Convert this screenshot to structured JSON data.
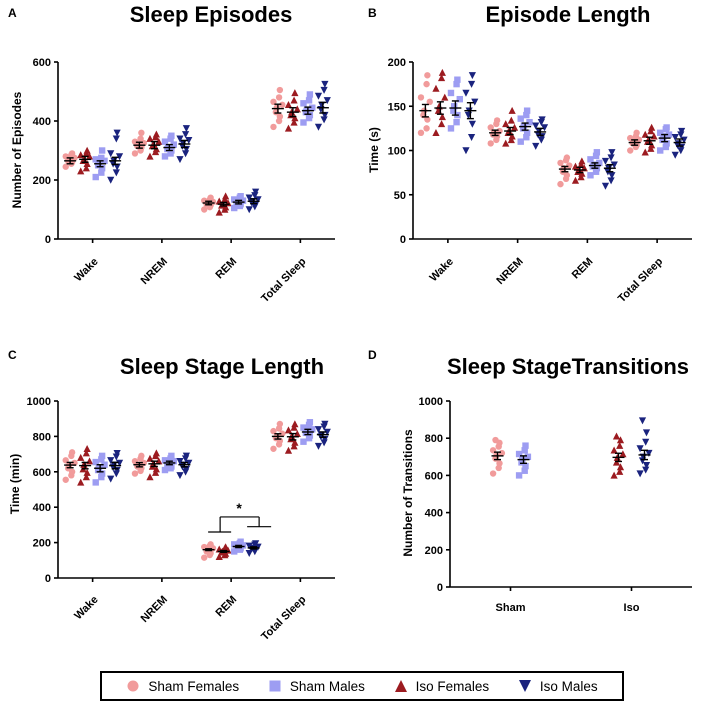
{
  "series": [
    {
      "name": "Sham Females",
      "color": "#f19b9b",
      "marker": "circle"
    },
    {
      "name": "Sham Males",
      "color": "#9d9df2",
      "marker": "square"
    },
    {
      "name": "Iso Females",
      "color": "#9c1b20",
      "marker": "triangle-up"
    },
    {
      "name": "Iso Males",
      "color": "#1a237e",
      "marker": "triangle-down"
    }
  ],
  "chart_data": [
    {
      "panel": "A",
      "title": "Sleep Episodes",
      "type": "scatter",
      "ylabel": "Number of Episodes",
      "ylim": [
        0,
        600
      ],
      "yticks": [
        0,
        200,
        400,
        600
      ],
      "categories": [
        "Wake",
        "NREM",
        "REM",
        "Total Sleep"
      ],
      "series_order": [
        "Sham Females",
        "Iso Females",
        "Sham Males",
        "Iso Males"
      ],
      "means": [
        [
          265,
          270,
          255,
          265
        ],
        [
          318,
          318,
          310,
          322
        ],
        [
          122,
          118,
          125,
          128
        ],
        [
          442,
          430,
          435,
          445
        ]
      ],
      "sem": [
        [
          10,
          10,
          10,
          12
        ],
        [
          10,
          12,
          10,
          12
        ],
        [
          6,
          6,
          6,
          8
        ],
        [
          15,
          15,
          12,
          18
        ]
      ],
      "points": [
        [
          [
            245,
            255,
            260,
            265,
            270,
            275,
            280,
            285,
            290
          ],
          [
            230,
            240,
            255,
            265,
            270,
            280,
            285,
            290,
            300
          ],
          [
            210,
            225,
            240,
            250,
            255,
            265,
            270,
            275,
            300
          ],
          [
            200,
            225,
            245,
            255,
            265,
            280,
            290,
            340,
            360
          ]
        ],
        [
          [
            290,
            300,
            310,
            315,
            320,
            325,
            330,
            340,
            360
          ],
          [
            280,
            295,
            305,
            315,
            320,
            330,
            340,
            345,
            355
          ],
          [
            280,
            290,
            300,
            305,
            310,
            320,
            330,
            340,
            350
          ],
          [
            270,
            290,
            305,
            315,
            325,
            335,
            340,
            355,
            375
          ]
        ],
        [
          [
            100,
            108,
            114,
            118,
            122,
            126,
            130,
            134,
            140
          ],
          [
            90,
            100,
            108,
            114,
            118,
            122,
            128,
            134,
            145
          ],
          [
            105,
            112,
            118,
            124,
            126,
            130,
            134,
            140,
            145
          ],
          [
            100,
            110,
            118,
            124,
            128,
            134,
            140,
            148,
            160
          ]
        ],
        [
          [
            380,
            400,
            415,
            430,
            445,
            455,
            465,
            480,
            505
          ],
          [
            375,
            395,
            410,
            420,
            430,
            440,
            455,
            470,
            495
          ],
          [
            395,
            410,
            420,
            430,
            435,
            445,
            460,
            470,
            490
          ],
          [
            380,
            405,
            420,
            440,
            455,
            470,
            485,
            505,
            525
          ]
        ]
      ]
    },
    {
      "panel": "B",
      "title": "Episode Length",
      "type": "scatter",
      "ylabel": "Time (s)",
      "ylim": [
        0,
        200
      ],
      "yticks": [
        0,
        50,
        100,
        150,
        200
      ],
      "categories": [
        "Wake",
        "NREM",
        "REM",
        "Total Sleep"
      ],
      "series_order": [
        "Sham Females",
        "Iso Females",
        "Sham Males",
        "Iso Males"
      ],
      "means": [
        [
          145,
          148,
          148,
          145
        ],
        [
          120,
          122,
          127,
          121
        ],
        [
          79,
          78,
          83,
          80
        ],
        [
          109,
          111,
          114,
          109
        ]
      ],
      "sem": [
        [
          7,
          7,
          8,
          9
        ],
        [
          3,
          4,
          4,
          4
        ],
        [
          3,
          3,
          3,
          4
        ],
        [
          3,
          4,
          4,
          4
        ]
      ],
      "points": [
        [
          [
            120,
            125,
            135,
            140,
            145,
            155,
            160,
            175,
            185
          ],
          [
            120,
            130,
            138,
            145,
            150,
            160,
            170,
            182,
            188
          ],
          [
            125,
            132,
            140,
            145,
            150,
            158,
            165,
            175,
            180
          ],
          [
            100,
            115,
            130,
            140,
            145,
            155,
            165,
            175,
            185
          ]
        ],
        [
          [
            108,
            112,
            116,
            118,
            120,
            122,
            126,
            130,
            134
          ],
          [
            108,
            112,
            116,
            120,
            122,
            126,
            130,
            134,
            145
          ],
          [
            110,
            115,
            120,
            125,
            128,
            132,
            136,
            140,
            145
          ],
          [
            105,
            112,
            116,
            118,
            122,
            126,
            128,
            132,
            135
          ]
        ],
        [
          [
            62,
            68,
            72,
            76,
            80,
            83,
            86,
            89,
            92
          ],
          [
            66,
            70,
            74,
            76,
            78,
            80,
            82,
            84,
            88
          ],
          [
            72,
            76,
            80,
            82,
            84,
            86,
            90,
            94,
            98
          ],
          [
            60,
            66,
            72,
            76,
            80,
            84,
            88,
            92,
            98
          ]
        ],
        [
          [
            100,
            104,
            106,
            108,
            110,
            112,
            114,
            116,
            120
          ],
          [
            98,
            102,
            106,
            110,
            112,
            116,
            118,
            122,
            126
          ],
          [
            100,
            104,
            108,
            112,
            116,
            118,
            120,
            124,
            126
          ],
          [
            95,
            100,
            104,
            106,
            108,
            112,
            115,
            118,
            122
          ]
        ]
      ]
    },
    {
      "panel": "C",
      "title": "Sleep Stage Length",
      "type": "scatter",
      "ylabel": "Time (min)",
      "ylim": [
        0,
        1000
      ],
      "yticks": [
        0,
        200,
        400,
        600,
        800,
        1000
      ],
      "categories": [
        "Wake",
        "NREM",
        "REM",
        "Total Sleep"
      ],
      "series_order": [
        "Sham Females",
        "Iso Females",
        "Sham Males",
        "Iso Males"
      ],
      "means": [
        [
          638,
          635,
          620,
          635
        ],
        [
          640,
          645,
          650,
          640
        ],
        [
          160,
          150,
          178,
          170
        ],
        [
          800,
          798,
          825,
          810
        ]
      ],
      "sem": [
        [
          15,
          18,
          20,
          18
        ],
        [
          12,
          15,
          10,
          12
        ],
        [
          5,
          5,
          6,
          6
        ],
        [
          15,
          18,
          15,
          15
        ]
      ],
      "points": [
        [
          [
            555,
            580,
            600,
            620,
            635,
            650,
            665,
            690,
            710
          ],
          [
            540,
            570,
            595,
            615,
            640,
            660,
            680,
            705,
            730
          ],
          [
            540,
            570,
            590,
            610,
            625,
            640,
            655,
            670,
            690
          ],
          [
            560,
            590,
            610,
            625,
            640,
            650,
            665,
            685,
            705
          ]
        ],
        [
          [
            590,
            605,
            620,
            630,
            640,
            650,
            660,
            675,
            690
          ],
          [
            570,
            595,
            615,
            630,
            645,
            660,
            675,
            690,
            705
          ],
          [
            610,
            620,
            630,
            640,
            650,
            660,
            665,
            675,
            690
          ],
          [
            580,
            600,
            615,
            630,
            640,
            650,
            660,
            675,
            690
          ]
        ],
        [
          [
            115,
            130,
            140,
            150,
            160,
            168,
            175,
            182,
            190
          ],
          [
            120,
            130,
            138,
            145,
            150,
            156,
            162,
            168,
            175
          ],
          [
            150,
            160,
            168,
            174,
            178,
            184,
            190,
            196,
            205
          ],
          [
            140,
            150,
            160,
            166,
            170,
            176,
            182,
            188,
            195
          ]
        ],
        [
          [
            730,
            755,
            775,
            790,
            800,
            815,
            830,
            845,
            870
          ],
          [
            720,
            745,
            765,
            785,
            800,
            815,
            835,
            850,
            870
          ],
          [
            770,
            790,
            805,
            820,
            830,
            840,
            850,
            865,
            880
          ],
          [
            745,
            765,
            785,
            800,
            810,
            825,
            840,
            855,
            870
          ]
        ]
      ],
      "significance": {
        "label": "*"
      }
    },
    {
      "panel": "D",
      "title": "Sleep StageTransitions",
      "type": "scatter",
      "ylabel": "Number of Transitions",
      "ylim": [
        0,
        1000
      ],
      "yticks": [
        0,
        200,
        400,
        600,
        800,
        1000
      ],
      "categories": [
        "Sham",
        "Iso"
      ],
      "series_order_by_category": [
        [
          "Sham Females",
          "Sham Males"
        ],
        [
          "Iso Females",
          "Iso Males"
        ]
      ],
      "means": [
        [
          705,
          685
        ],
        [
          697,
          710
        ]
      ],
      "sem": [
        [
          20,
          20
        ],
        [
          22,
          25
        ]
      ],
      "points": [
        [
          [
            610,
            640,
            665,
            690,
            705,
            720,
            735,
            755,
            775,
            790
          ],
          [
            600,
            625,
            650,
            670,
            685,
            700,
            715,
            735,
            760
          ]
        ],
        [
          [
            600,
            620,
            645,
            670,
            695,
            715,
            735,
            760,
            790,
            810
          ],
          [
            610,
            630,
            655,
            680,
            700,
            720,
            745,
            780,
            830,
            895
          ]
        ]
      ]
    }
  ]
}
